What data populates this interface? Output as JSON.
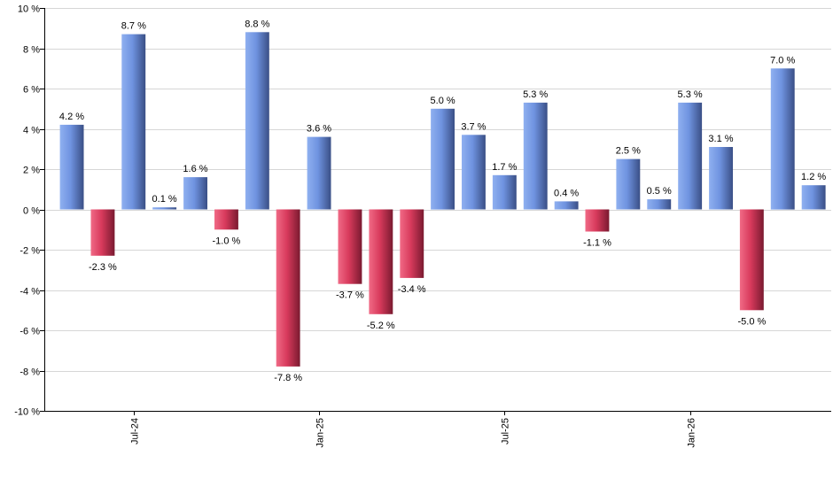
{
  "chart_data": {
    "type": "bar",
    "title": "",
    "xlabel": "",
    "ylabel": "",
    "ylim": [
      -10,
      10
    ],
    "y_ticks": [
      -10,
      -8,
      -6,
      -4,
      -2,
      0,
      2,
      4,
      6,
      8,
      10
    ],
    "y_tick_suffix": " %",
    "grid": true,
    "legend": "none",
    "colors": {
      "positive": "#5b7fd6",
      "negative": "#cc2a4a"
    },
    "x_tick_labels": [
      {
        "label": "Jul-24",
        "index": 2
      },
      {
        "label": "Jan-25",
        "index": 8
      },
      {
        "label": "Jul-25",
        "index": 14
      },
      {
        "label": "Jan-26",
        "index": 20
      }
    ],
    "values": [
      4.2,
      -2.3,
      8.7,
      0.1,
      1.6,
      -1.0,
      8.8,
      -7.8,
      3.6,
      -3.7,
      -5.2,
      -3.4,
      5.0,
      3.7,
      1.7,
      5.3,
      0.4,
      -1.1,
      2.5,
      0.5,
      5.3,
      3.1,
      -5.0,
      7.0,
      1.2
    ],
    "data_labels": [
      "4.2 %",
      "-2.3 %",
      "8.7 %",
      "0.1 %",
      "1.6 %",
      "-1.0 %",
      "8.8 %",
      "-7.8 %",
      "3.6 %",
      "-3.7 %",
      "-5.2 %",
      "-3.4 %",
      "5.0 %",
      "3.7 %",
      "1.7 %",
      "5.3 %",
      "0.4 %",
      "-1.1 %",
      "2.5 %",
      "0.5 %",
      "5.3 %",
      "3.1 %",
      "-5.0 %",
      "7.0 %",
      "1.2 %"
    ]
  }
}
